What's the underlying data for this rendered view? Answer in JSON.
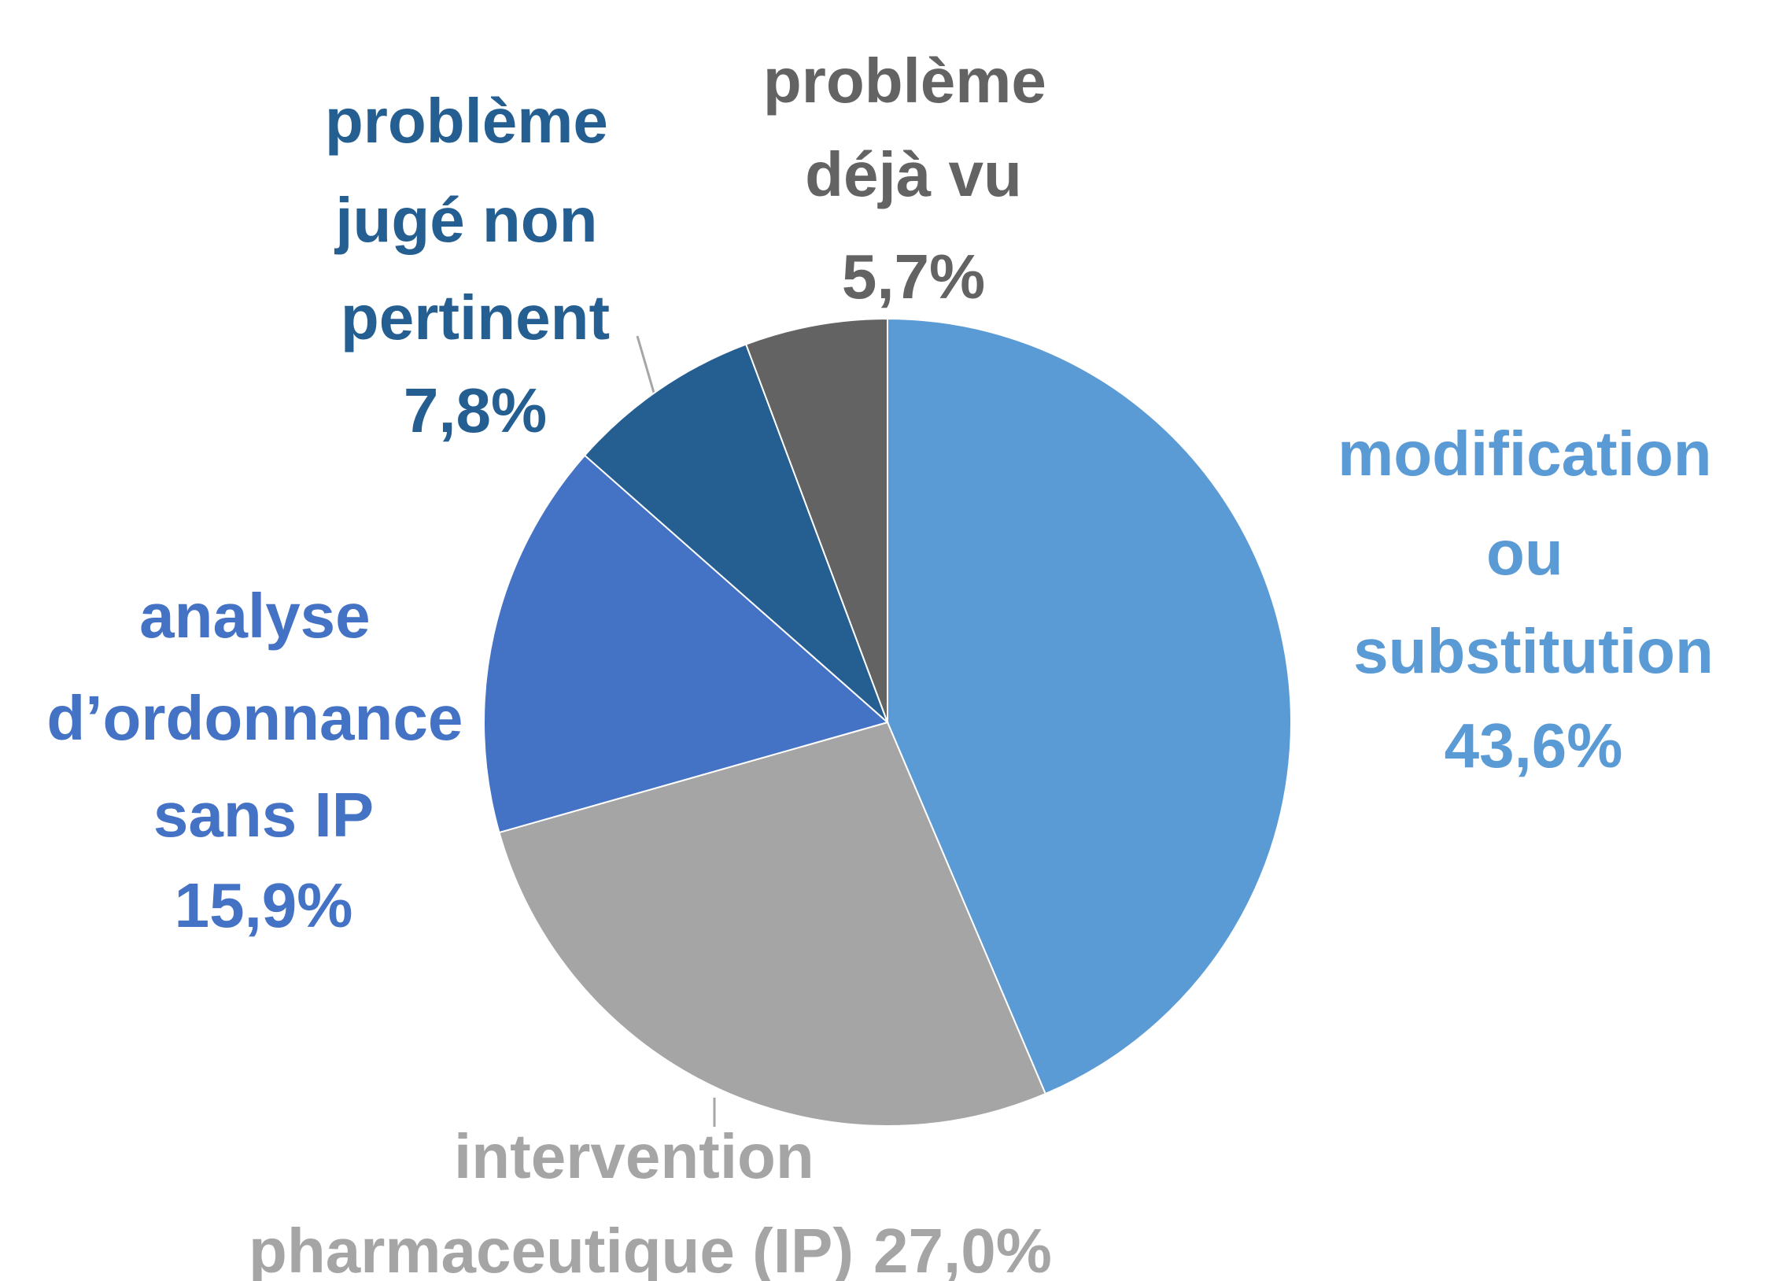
{
  "chart_data": {
    "type": "pie",
    "categories": [
      "modification ou substitution",
      "intervention pharmaceutique (IP)",
      "analyse d’ordonnance sans IP",
      "problème jugé non pertinent",
      "problème déjà vu"
    ],
    "values": [
      43.6,
      27.0,
      15.9,
      7.8,
      5.7
    ],
    "value_labels": [
      "43,6%",
      "27,0%",
      "15,9%",
      "7,8%",
      "5,7%"
    ],
    "colors": [
      "#5b9bd5",
      "#a5a5a5",
      "#4472c4",
      "#255e91",
      "#636363"
    ]
  }
}
